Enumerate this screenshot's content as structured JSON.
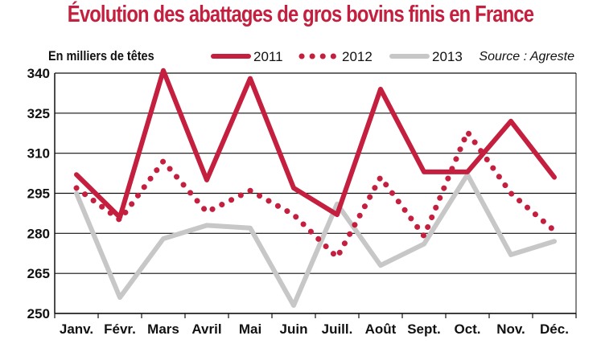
{
  "chart_data": {
    "type": "line",
    "title": "Évolution des abattages de gros bovins finis en France",
    "subtitle": "En milliers de têtes",
    "source": "Source : Agreste",
    "categories": [
      "Janv.",
      "Févr.",
      "Mars",
      "Avril",
      "Mai",
      "Juin",
      "Juill.",
      "Août",
      "Sept.",
      "Oct.",
      "Nov.",
      "Déc."
    ],
    "yticks": [
      250,
      265,
      280,
      295,
      310,
      325,
      340
    ],
    "ylim": [
      250,
      340
    ],
    "grid": true,
    "legend_position": "top",
    "series": [
      {
        "name": "2011",
        "style": "solid",
        "color": "#c41f3e",
        "values": [
          302,
          286,
          341,
          300,
          338,
          297,
          287,
          334,
          303,
          303,
          322,
          301
        ]
      },
      {
        "name": "2012",
        "style": "dotted",
        "color": "#c41f3e",
        "values": [
          297,
          285,
          307,
          288,
          296,
          287,
          271,
          301,
          279,
          318,
          295,
          281
        ]
      },
      {
        "name": "2013",
        "style": "solid",
        "color": "#c7c7c7",
        "values": [
          295,
          256,
          278,
          283,
          282,
          253,
          291,
          268,
          276,
          302,
          272,
          277
        ]
      }
    ]
  }
}
